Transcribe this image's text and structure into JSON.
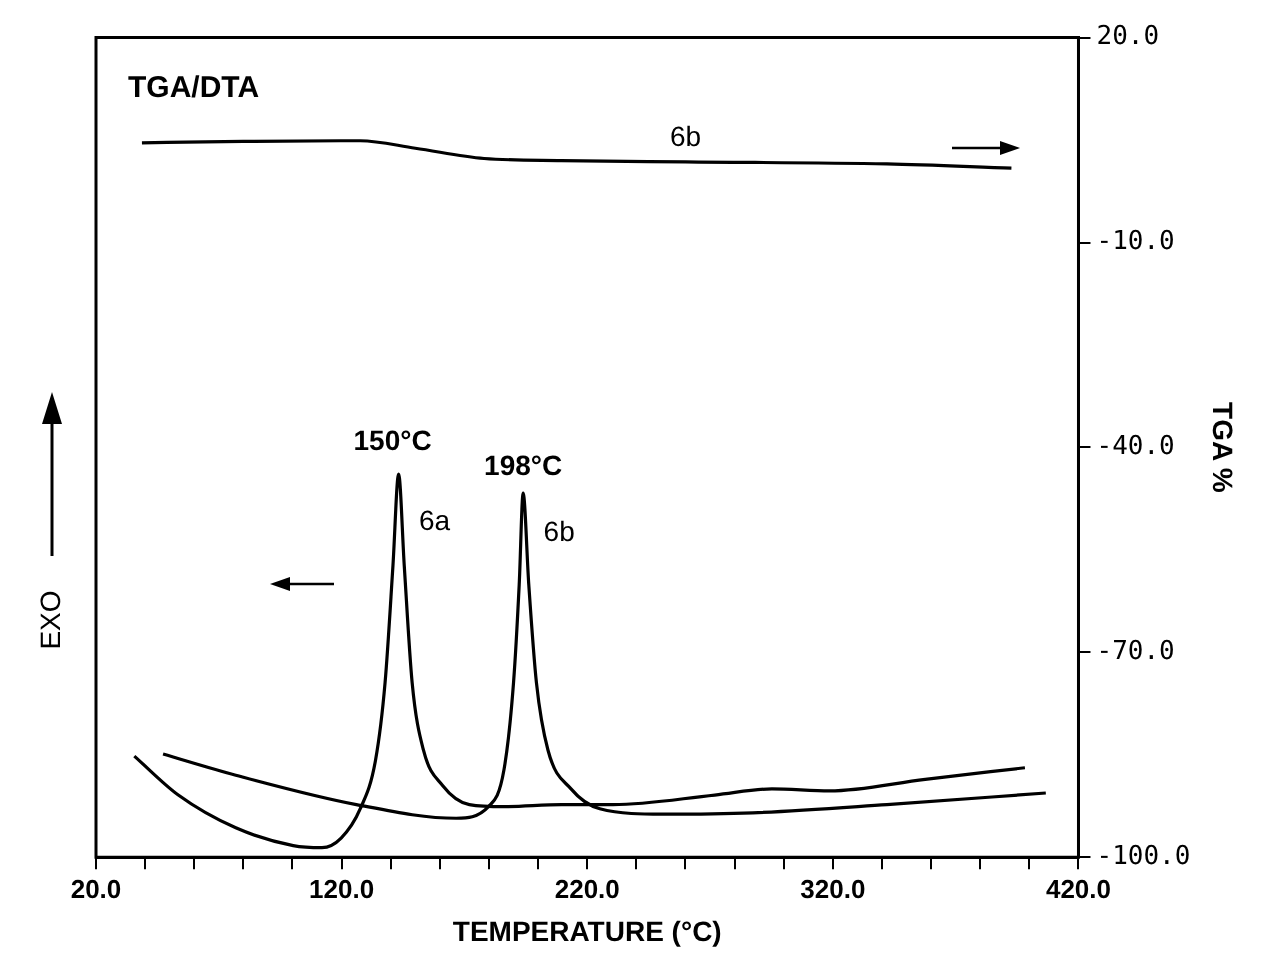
{
  "chart_data": {
    "type": "line",
    "xlabel": "TEMPERATURE (°C)",
    "ylabel": "TGA %",
    "xlim": [
      20,
      420
    ],
    "ylim": [
      -100,
      20
    ],
    "xticks": [
      {
        "value": 20,
        "label": "20.0"
      },
      {
        "value": 40,
        "label": null
      },
      {
        "value": 60,
        "label": null
      },
      {
        "value": 80,
        "label": null
      },
      {
        "value": 100,
        "label": null
      },
      {
        "value": 120,
        "label": "120.0"
      },
      {
        "value": 140,
        "label": null
      },
      {
        "value": 160,
        "label": null
      },
      {
        "value": 180,
        "label": null
      },
      {
        "value": 200,
        "label": null
      },
      {
        "value": 220,
        "label": "220.0"
      },
      {
        "value": 240,
        "label": null
      },
      {
        "value": 260,
        "label": null
      },
      {
        "value": 280,
        "label": null
      },
      {
        "value": 300,
        "label": null
      },
      {
        "value": 320,
        "label": "320.0"
      },
      {
        "value": 340,
        "label": null
      },
      {
        "value": 360,
        "label": null
      },
      {
        "value": 380,
        "label": null
      },
      {
        "value": 400,
        "label": null
      },
      {
        "value": 420,
        "label": "420.0"
      }
    ],
    "yticks": [
      {
        "value": 20,
        "label": "20.0"
      },
      {
        "value": -10,
        "label": "-10.0"
      },
      {
        "value": -40,
        "label": "-40.0"
      },
      {
        "value": -70,
        "label": "-70.0"
      },
      {
        "value": -100,
        "label": "-100.0"
      }
    ],
    "grid": false,
    "marker": "none",
    "line_style": "solid",
    "series": [
      {
        "color": "#000000",
        "x": [
          35.6,
          53.5,
          76.9,
          100.3,
          112,
          119.8,
          127.6,
          133.8,
          137.7,
          140.9,
          143.2,
          145.5,
          148.7,
          153.3,
          161.1,
          172,
          186.1,
          209.5,
          230.5,
          271.9,
          295.2,
          318.6,
          357.6,
          398.2
        ],
        "values": [
          -85.2,
          -90.9,
          -95.7,
          -98.3,
          -98.6,
          -97.2,
          -92.9,
          -85.8,
          -74.4,
          -57.3,
          -43.9,
          -57.3,
          -74.4,
          -84.3,
          -89.5,
          -92.3,
          -92.6,
          -92.3,
          -92.3,
          -90.9,
          -90.0,
          -90.3,
          -88.6,
          -86.9
        ]
      },
      {
        "color": "#000000",
        "x": [
          47.3,
          76.9,
          126,
          166.6,
          179.8,
          186.1,
          190,
          192.3,
          193.9,
          196.2,
          199.3,
          204,
          213.4,
          225.1,
          250.8,
          287.4,
          342,
          406.7
        ],
        "values": [
          -84.9,
          -88.0,
          -92.3,
          -94.3,
          -92.6,
          -87.2,
          -74.4,
          -60.1,
          -46.7,
          -60.1,
          -74.4,
          -84.3,
          -90.0,
          -92.9,
          -93.7,
          -93.5,
          -92.3,
          -90.6
        ]
      },
      {
        "color": "#000000",
        "x": [
          38.7,
          80,
          127.6,
          150,
          178,
          209.5,
          260,
          342,
          392.7
        ],
        "values": [
          4.6,
          4.8,
          4.9,
          3.8,
          2.3,
          2.0,
          1.8,
          1.5,
          0.9
        ]
      }
    ],
    "annotations": [
      "TGA/DTA",
      "EXO",
      {
        "text": "150°C",
        "x": 143.2,
        "y": -43.9
      },
      {
        "text": "198°C",
        "x": 193.9,
        "y": -46.7
      },
      {
        "text": "6a",
        "x": 143.2,
        "y": -43.9
      },
      {
        "text": "6b",
        "x": 193.9,
        "y": -46.7
      },
      {
        "text": "6b",
        "x": 260,
        "y": 1.8
      }
    ]
  }
}
